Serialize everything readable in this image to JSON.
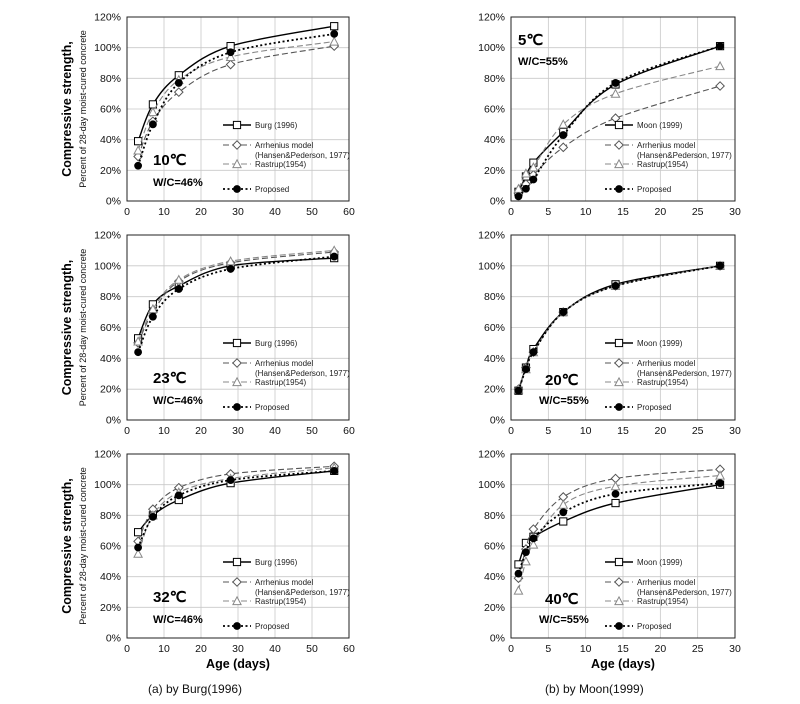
{
  "figure": {
    "ylabel_main": "Compressive strength,",
    "ylabel_sub": "Percent of 28-day moist-cured concrete",
    "xlabel": "Age (days)",
    "caption_left": "(a) by Burg(1996)",
    "caption_right": "(b) by Moon(1999)"
  },
  "chart_data": [
    {
      "type": "line",
      "title": "10℃",
      "note": "W/C=46%",
      "xlim": [
        0,
        60
      ],
      "ylim": [
        0,
        120
      ],
      "xticks": [
        0,
        10,
        20,
        30,
        40,
        50,
        60
      ],
      "yticks": [
        0,
        20,
        40,
        60,
        80,
        100,
        120
      ],
      "ytick_suffix": "%",
      "show_xlabel": false,
      "show_ylabel": true,
      "legend": "right",
      "series": [
        {
          "name": "Burg (1996)",
          "x": [
            3,
            7,
            14,
            28,
            56
          ],
          "y": [
            39,
            63,
            82,
            101,
            114
          ]
        },
        {
          "name": "Arrhenius model",
          "name2": "(Hansen&Pederson, 1977)",
          "x": [
            3,
            7,
            14,
            28,
            56
          ],
          "y": [
            29,
            52,
            71,
            89,
            101
          ]
        },
        {
          "name": "Rastrup(1954)",
          "x": [
            3,
            7,
            14,
            28,
            56
          ],
          "y": [
            33,
            58,
            79,
            94,
            104
          ]
        },
        {
          "name": "Proposed",
          "x": [
            3,
            7,
            14,
            28,
            56
          ],
          "y": [
            23,
            50,
            77,
            97,
            109
          ]
        }
      ]
    },
    {
      "type": "line",
      "title": "5℃",
      "note": "W/C=55%",
      "xlim": [
        0,
        30
      ],
      "ylim": [
        0,
        120
      ],
      "xticks": [
        0,
        5,
        10,
        15,
        20,
        25,
        30
      ],
      "yticks": [
        0,
        20,
        40,
        60,
        80,
        100,
        120
      ],
      "ytick_suffix": "%",
      "show_xlabel": false,
      "show_ylabel": false,
      "legend": "right",
      "series": [
        {
          "name": "Moon (1999)",
          "x": [
            1,
            2,
            3,
            7,
            14,
            28
          ],
          "y": [
            6,
            16,
            25,
            45,
            76,
            101
          ]
        },
        {
          "name": "Arrhenius model",
          "name2": "(Hansen&Pederson, 1977)",
          "x": [
            1,
            2,
            3,
            7,
            14,
            28
          ],
          "y": [
            5,
            11,
            17,
            35,
            54,
            75
          ]
        },
        {
          "name": "Rastrup(1954)",
          "x": [
            1,
            2,
            3,
            7,
            14,
            28
          ],
          "y": [
            8,
            18,
            22,
            50,
            70,
            88
          ]
        },
        {
          "name": "Proposed",
          "x": [
            1,
            2,
            3,
            7,
            14,
            28
          ],
          "y": [
            3,
            8,
            14,
            43,
            77,
            101
          ]
        }
      ]
    },
    {
      "type": "line",
      "title": "23℃",
      "note": "W/C=46%",
      "xlim": [
        0,
        60
      ],
      "ylim": [
        0,
        120
      ],
      "xticks": [
        0,
        10,
        20,
        30,
        40,
        50,
        60
      ],
      "yticks": [
        0,
        20,
        40,
        60,
        80,
        100,
        120
      ],
      "ytick_suffix": "%",
      "show_xlabel": false,
      "show_ylabel": true,
      "legend": "right",
      "series": [
        {
          "name": "Burg (1996)",
          "x": [
            3,
            7,
            14,
            28,
            56
          ],
          "y": [
            53,
            75,
            87,
            100,
            105
          ]
        },
        {
          "name": "Arrhenius model",
          "name2": "(Hansen&Pederson, 1977)",
          "x": [
            3,
            7,
            14,
            28,
            56
          ],
          "y": [
            50,
            70,
            90,
            102,
            109
          ]
        },
        {
          "name": "Rastrup(1954)",
          "x": [
            3,
            7,
            14,
            28,
            56
          ],
          "y": [
            51,
            72,
            91,
            103,
            110
          ]
        },
        {
          "name": "Proposed",
          "x": [
            3,
            7,
            14,
            28,
            56
          ],
          "y": [
            44,
            67,
            85,
            98,
            106
          ]
        }
      ]
    },
    {
      "type": "line",
      "title": "20℃",
      "note": "W/C=55%",
      "xlim": [
        0,
        30
      ],
      "ylim": [
        0,
        120
      ],
      "xticks": [
        0,
        5,
        10,
        15,
        20,
        25,
        30
      ],
      "yticks": [
        0,
        20,
        40,
        60,
        80,
        100,
        120
      ],
      "ytick_suffix": "%",
      "show_xlabel": false,
      "show_ylabel": false,
      "legend": "right",
      "series": [
        {
          "name": "Moon (1999)",
          "x": [
            1,
            2,
            3,
            7,
            14,
            28
          ],
          "y": [
            19,
            34,
            46,
            70,
            88,
            100
          ]
        },
        {
          "name": "Arrhenius model",
          "name2": "(Hansen&Pederson, 1977)",
          "x": [
            1,
            2,
            3,
            7,
            14,
            28
          ],
          "y": [
            20,
            34,
            44,
            70,
            87,
            100
          ]
        },
        {
          "name": "Rastrup(1954)",
          "x": [
            1,
            2,
            3,
            7,
            14,
            28
          ],
          "y": [
            20,
            33,
            44,
            70,
            87,
            100
          ]
        },
        {
          "name": "Proposed",
          "x": [
            1,
            2,
            3,
            7,
            14,
            28
          ],
          "y": [
            19,
            33,
            44,
            70,
            87,
            100
          ]
        }
      ]
    },
    {
      "type": "line",
      "title": "32℃",
      "note": "W/C=46%",
      "xlim": [
        0,
        60
      ],
      "ylim": [
        0,
        120
      ],
      "xticks": [
        0,
        10,
        20,
        30,
        40,
        50,
        60
      ],
      "yticks": [
        0,
        20,
        40,
        60,
        80,
        100,
        120
      ],
      "ytick_suffix": "%",
      "show_xlabel": true,
      "show_ylabel": true,
      "legend": "right",
      "series": [
        {
          "name": "Burg (1996)",
          "x": [
            3,
            7,
            14,
            28,
            56
          ],
          "y": [
            69,
            80,
            90,
            101,
            109
          ]
        },
        {
          "name": "Arrhenius model",
          "name2": "(Hansen&Pederson, 1977)",
          "x": [
            3,
            7,
            14,
            28,
            56
          ],
          "y": [
            63,
            84,
            98,
            107,
            112
          ]
        },
        {
          "name": "Rastrup(1954)",
          "x": [
            3,
            7,
            14,
            28,
            56
          ],
          "y": [
            55,
            80,
            95,
            104,
            111
          ]
        },
        {
          "name": "Proposed",
          "x": [
            3,
            7,
            14,
            28,
            56
          ],
          "y": [
            59,
            79,
            93,
            103,
            109
          ]
        }
      ]
    },
    {
      "type": "line",
      "title": "40℃",
      "note": "W/C=55%",
      "xlim": [
        0,
        30
      ],
      "ylim": [
        0,
        120
      ],
      "xticks": [
        0,
        5,
        10,
        15,
        20,
        25,
        30
      ],
      "yticks": [
        0,
        20,
        40,
        60,
        80,
        100,
        120
      ],
      "ytick_suffix": "%",
      "show_xlabel": true,
      "show_ylabel": false,
      "legend": "right",
      "series": [
        {
          "name": "Moon (1999)",
          "x": [
            1,
            2,
            3,
            7,
            14,
            28
          ],
          "y": [
            48,
            62,
            66,
            76,
            88,
            100
          ]
        },
        {
          "name": "Arrhenius model",
          "name2": "(Hansen&Pederson, 1977)",
          "x": [
            1,
            2,
            3,
            7,
            14,
            28
          ],
          "y": [
            39,
            58,
            71,
            92,
            104,
            110
          ]
        },
        {
          "name": "Rastrup(1954)",
          "x": [
            1,
            2,
            3,
            7,
            14,
            28
          ],
          "y": [
            31,
            50,
            61,
            87,
            99,
            106
          ]
        },
        {
          "name": "Proposed",
          "x": [
            1,
            2,
            3,
            7,
            14,
            28
          ],
          "y": [
            42,
            56,
            65,
            82,
            94,
            101
          ]
        }
      ]
    }
  ]
}
